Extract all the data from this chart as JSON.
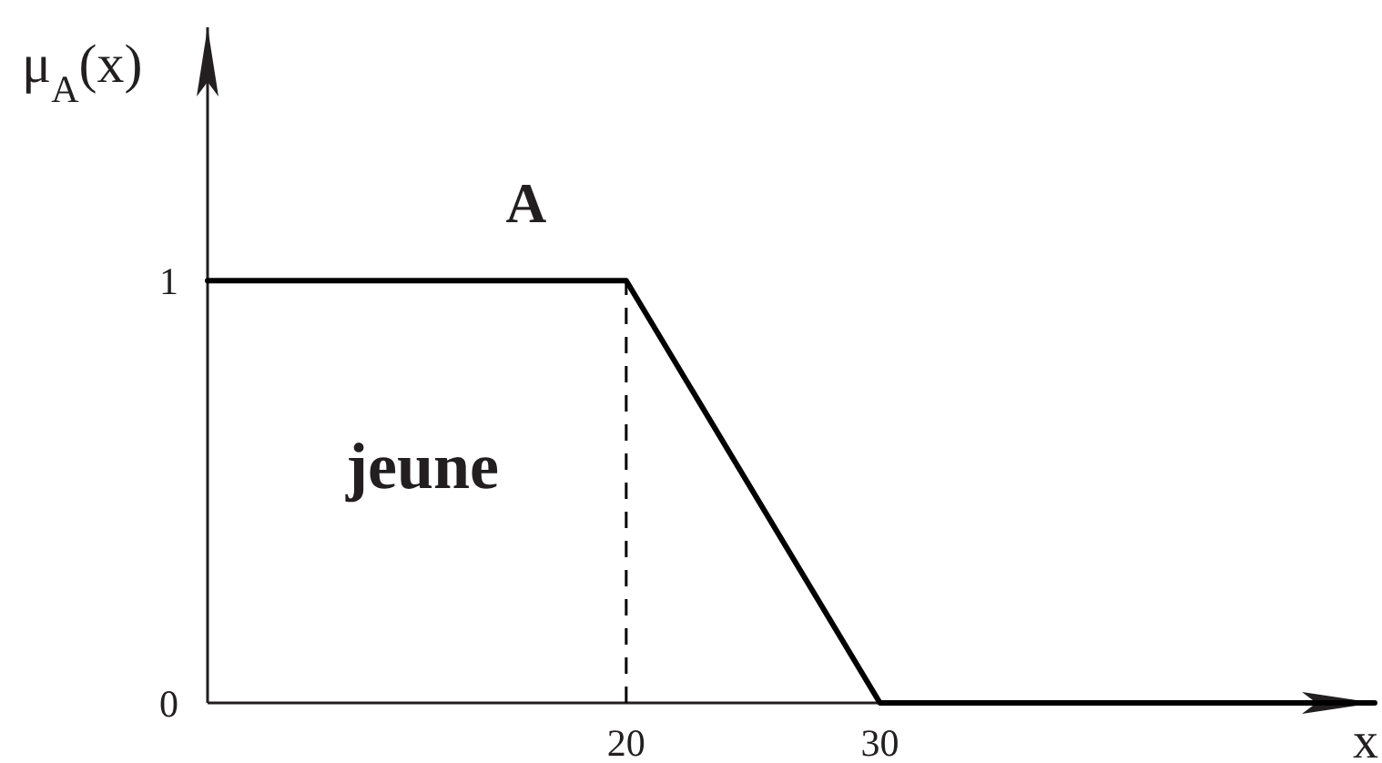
{
  "chart_data": {
    "type": "line",
    "ylabel": "μ$_{A}$(x)",
    "xlabel": "x",
    "annotations": [
      "jeune"
    ],
    "xlim": [
      3.5,
      49.5
    ],
    "ylim": [
      0,
      1.6
    ],
    "xticks": [
      20,
      30
    ],
    "yticks": [
      0,
      1
    ],
    "line_style": "solid",
    "series": [
      {
        "name": "A",
        "color": "#000000",
        "x": [
          3.5,
          20,
          30,
          49.5
        ],
        "values": [
          1,
          1,
          0,
          0
        ]
      },
      {
        "color": "#000000",
        "x": [
          20,
          20
        ],
        "values": [
          0,
          1
        ],
        "line_style": "dashed"
      }
    ]
  }
}
